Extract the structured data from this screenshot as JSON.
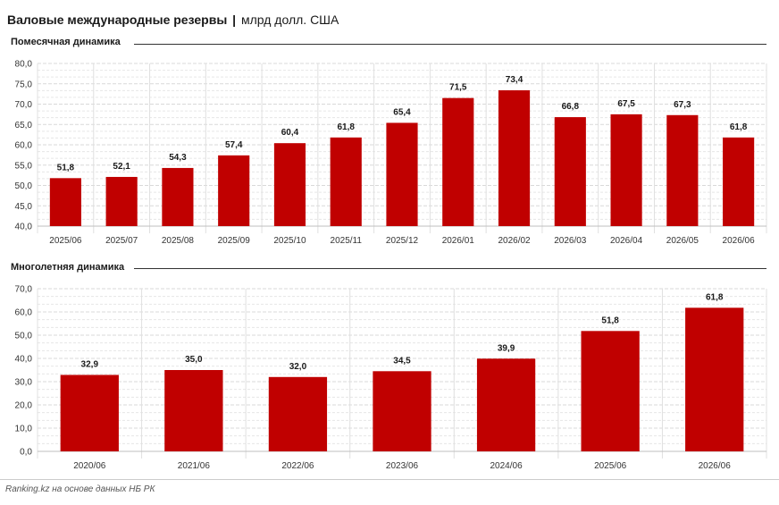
{
  "header": {
    "title_bold": "Валовые международные резервы",
    "separator": "|",
    "title_rest": "млрд долл. США"
  },
  "footer": {
    "source": "Ranking.kz на основе данных НБ РК"
  },
  "colors": {
    "bar": "#c00000",
    "grid": "#d9d9d9",
    "axis": "#bfbfbf"
  },
  "chart_data": [
    {
      "type": "bar",
      "title": "Помесячная динамика",
      "categories": [
        "2025/06",
        "2025/07",
        "2025/08",
        "2025/09",
        "2025/10",
        "2025/11",
        "2025/12",
        "2026/01",
        "2026/02",
        "2026/03",
        "2026/04",
        "2026/05",
        "2026/06"
      ],
      "values": [
        51.8,
        52.1,
        54.3,
        57.4,
        60.4,
        61.8,
        65.4,
        71.5,
        73.4,
        66.8,
        67.5,
        67.3,
        61.8
      ],
      "value_labels": [
        "51,8",
        "52,1",
        "54,3",
        "57,4",
        "60,4",
        "61,8",
        "65,4",
        "71,5",
        "73,4",
        "66,8",
        "67,5",
        "67,3",
        "61,8"
      ],
      "ylim": [
        40,
        80
      ],
      "yticks": [
        "40,0",
        "45,0",
        "50,0",
        "55,0",
        "60,0",
        "65,0",
        "70,0",
        "75,0",
        "80,0"
      ],
      "grid": true
    },
    {
      "type": "bar",
      "title": "Многолетняя динамика",
      "categories": [
        "2020/06",
        "2021/06",
        "2022/06",
        "2023/06",
        "2024/06",
        "2025/06",
        "2026/06"
      ],
      "values": [
        32.9,
        35.0,
        32.0,
        34.5,
        39.9,
        51.8,
        61.8
      ],
      "value_labels": [
        "32,9",
        "35,0",
        "32,0",
        "34,5",
        "39,9",
        "51,8",
        "61,8"
      ],
      "ylim": [
        0,
        70
      ],
      "yticks": [
        "0,0",
        "10,0",
        "20,0",
        "30,0",
        "40,0",
        "50,0",
        "60,0",
        "70,0"
      ],
      "grid": true
    }
  ]
}
